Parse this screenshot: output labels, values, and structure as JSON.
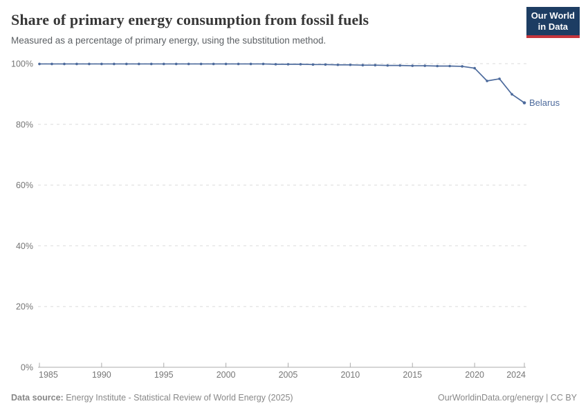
{
  "header": {
    "title": "Share of primary energy consumption from fossil fuels",
    "subtitle": "Measured as a percentage of primary energy, using the substitution method.",
    "logo": {
      "line1": "Our World",
      "line2": "in Data"
    }
  },
  "footer": {
    "source_label": "Data source:",
    "source_text": " Energy Institute - Statistical Review of World Energy (2025)",
    "link_text": "OurWorldinData.org/energy | CC BY"
  },
  "colors": {
    "line": "#4C6A9C",
    "entity_label": "#4C6A9C",
    "grid": "#DBDBDB",
    "axis": "#ABABAB",
    "tick_label": "#767676",
    "title": "#373737",
    "subtitle": "#5B5F63",
    "footer": "#888888",
    "logo_bg": "#1D3D63",
    "logo_red": "#C5353C"
  },
  "chart_data": {
    "type": "line",
    "title": "Share of primary energy consumption from fossil fuels",
    "subtitle": "Measured as a percentage of primary energy, using the substitution method.",
    "xlabel": "",
    "ylabel": "",
    "xlim": [
      1985,
      2024
    ],
    "ylim": [
      0,
      100
    ],
    "x_ticks": [
      1985,
      1990,
      1995,
      2000,
      2005,
      2010,
      2015,
      2020,
      2024
    ],
    "x_tick_labels": [
      "1985",
      "1990",
      "1995",
      "2000",
      "2005",
      "2010",
      "2015",
      "2020",
      "2024"
    ],
    "y_ticks": [
      0,
      20,
      40,
      60,
      80,
      100
    ],
    "y_tick_labels": [
      "0%",
      "20%",
      "40%",
      "60%",
      "80%",
      "100%"
    ],
    "grid": "horizontal-dashed",
    "legend": "line-end-label",
    "series": [
      {
        "name": "Belarus",
        "color": "#4C6A9C",
        "x": [
          1985,
          1986,
          1987,
          1988,
          1989,
          1990,
          1991,
          1992,
          1993,
          1994,
          1995,
          1996,
          1997,
          1998,
          1999,
          2000,
          2001,
          2002,
          2003,
          2004,
          2005,
          2006,
          2007,
          2008,
          2009,
          2010,
          2011,
          2012,
          2013,
          2014,
          2015,
          2016,
          2017,
          2018,
          2019,
          2020,
          2021,
          2022,
          2023,
          2024
        ],
        "values": [
          99.9,
          99.9,
          99.9,
          99.9,
          99.9,
          99.9,
          99.9,
          99.9,
          99.9,
          99.9,
          99.9,
          99.9,
          99.9,
          99.9,
          99.9,
          99.9,
          99.9,
          99.9,
          99.9,
          99.8,
          99.8,
          99.8,
          99.7,
          99.7,
          99.6,
          99.6,
          99.5,
          99.5,
          99.4,
          99.4,
          99.3,
          99.3,
          99.2,
          99.2,
          99.1,
          98.5,
          94.3,
          95.0,
          89.9,
          87.1
        ]
      }
    ]
  }
}
